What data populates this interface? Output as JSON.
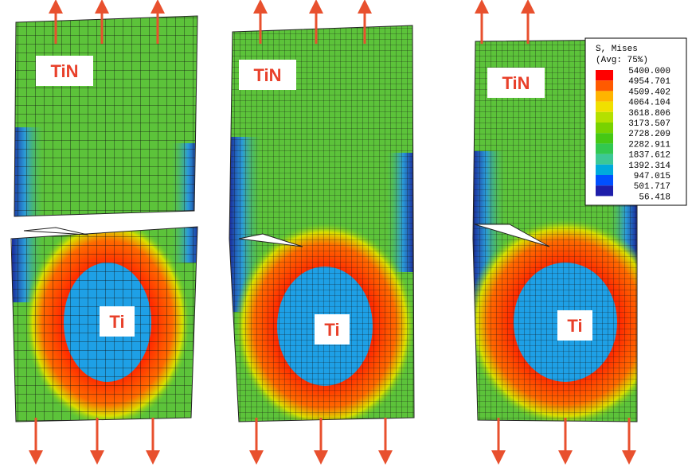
{
  "panels": [
    {
      "top_label": "TiN",
      "core_label": "Ti"
    },
    {
      "top_label": "TiN",
      "core_label": "Ti"
    },
    {
      "top_label": "TiN",
      "core_label": "Ti"
    }
  ],
  "legend": {
    "title": "S, Mises",
    "subtitle": "(Avg: 75%)",
    "values": [
      "5400.000",
      "4954.701",
      "4509.402",
      "4064.104",
      "3618.806",
      "3173.507",
      "2728.209",
      "2282.911",
      "1837.612",
      "1392.314",
      "947.015",
      "501.717",
      "56.418"
    ],
    "colors": [
      "#ff0000",
      "#ff5a00",
      "#ffb400",
      "#f0e000",
      "#b4e000",
      "#78d200",
      "#46c814",
      "#32c850",
      "#3cc896",
      "#00aadc",
      "#0050ff",
      "#1e1eaa"
    ]
  }
}
